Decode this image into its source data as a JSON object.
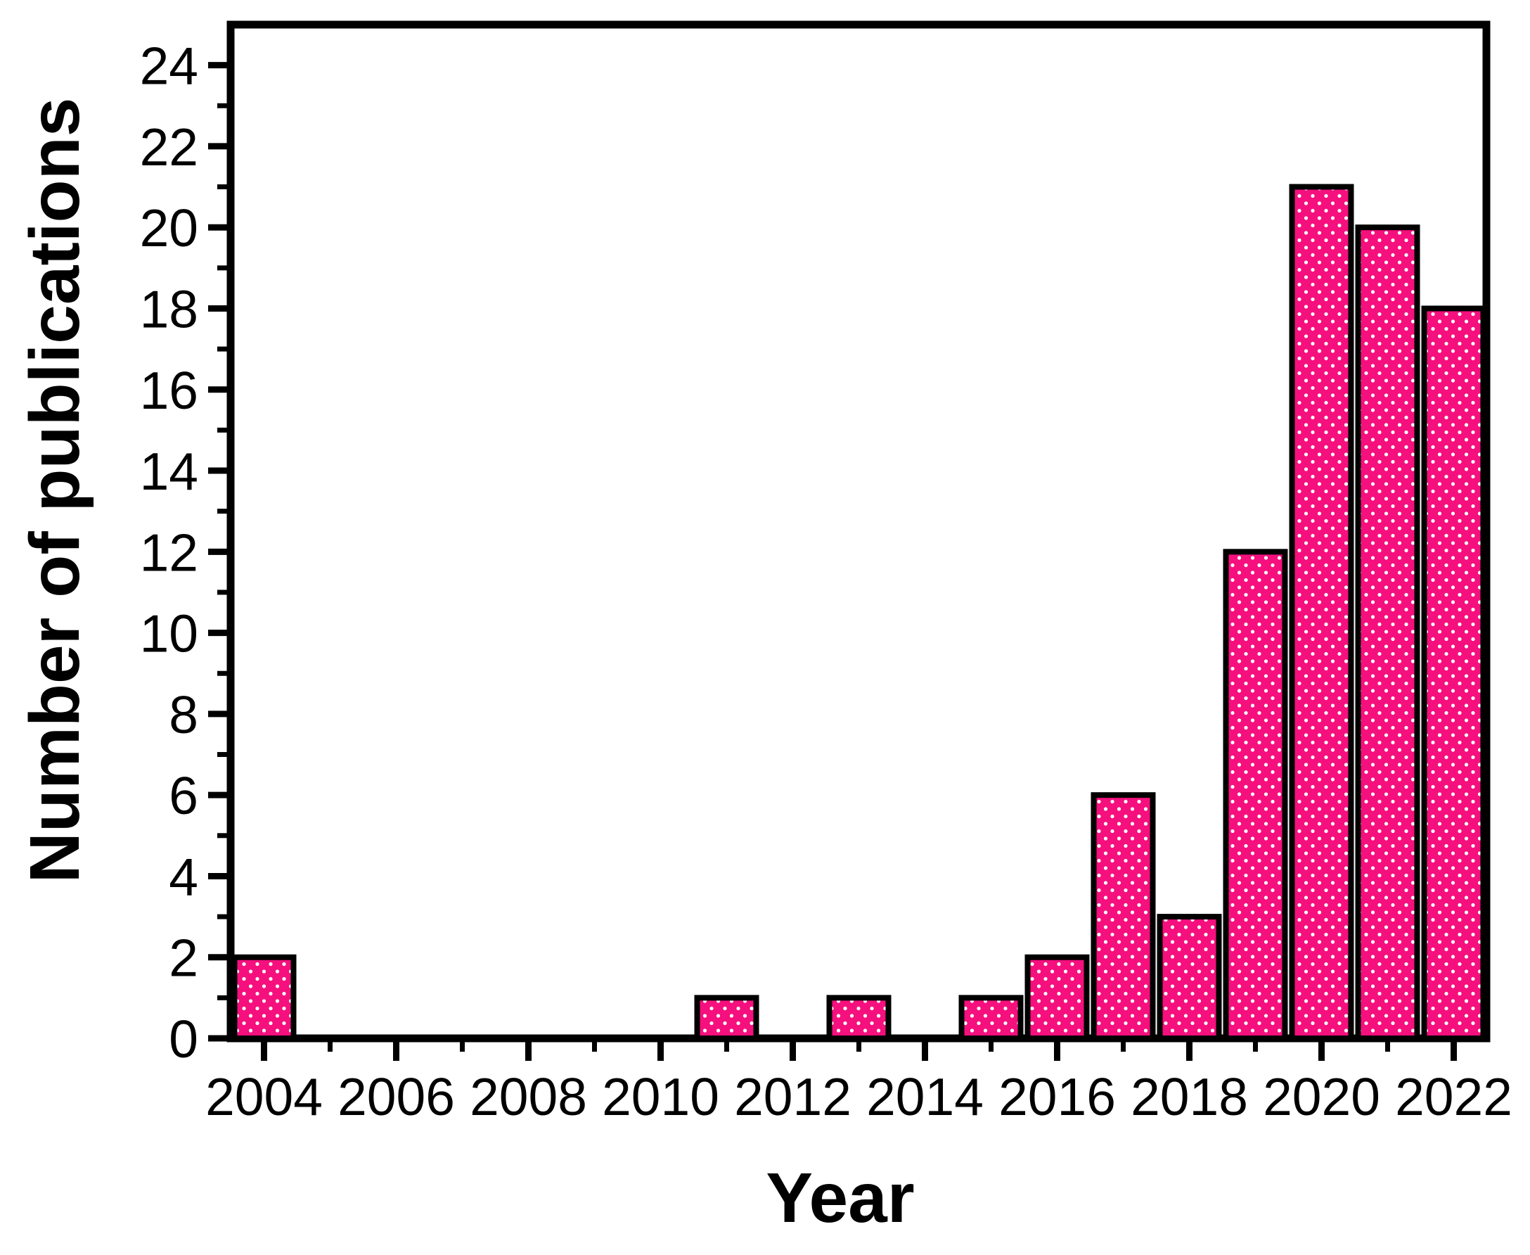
{
  "figure": {
    "background_color": "#ffffff"
  },
  "chart_data": {
    "type": "bar",
    "title": "",
    "xlabel": "Year",
    "ylabel": "Number of publications",
    "bars": [
      {
        "year": 2004,
        "value": 2
      },
      {
        "year": 2011,
        "value": 1
      },
      {
        "year": 2013,
        "value": 1
      },
      {
        "year": 2015,
        "value": 1
      },
      {
        "year": 2016,
        "value": 2
      },
      {
        "year": 2017,
        "value": 6
      },
      {
        "year": 2018,
        "value": 3
      },
      {
        "year": 2019,
        "value": 12
      },
      {
        "year": 2020,
        "value": 21
      },
      {
        "year": 2021,
        "value": 20
      },
      {
        "year": 2022,
        "value": 18
      }
    ],
    "x_axis": {
      "min": 2003.45,
      "max": 2022.55,
      "major_ticks": [
        2004,
        2006,
        2008,
        2010,
        2012,
        2014,
        2016,
        2018,
        2020,
        2022
      ],
      "minor_ticks": [
        2005,
        2007,
        2009,
        2011,
        2013,
        2015,
        2017,
        2019,
        2021
      ]
    },
    "y_axis": {
      "min": 0,
      "max": 25,
      "major_ticks": [
        0,
        2,
        4,
        6,
        8,
        10,
        12,
        14,
        16,
        18,
        20,
        22,
        24
      ],
      "minor_ticks": [
        1,
        3,
        5,
        7,
        9,
        11,
        13,
        15,
        17,
        19,
        21,
        23
      ]
    },
    "legend": "none",
    "grid": "off",
    "bar_color": "#F5107E",
    "bar_pattern": "white-dots",
    "bar_pattern_dot_color": "#ffffff",
    "bar_border_color": "#000000",
    "axis_color": "#000000",
    "text_color": "#000000"
  }
}
